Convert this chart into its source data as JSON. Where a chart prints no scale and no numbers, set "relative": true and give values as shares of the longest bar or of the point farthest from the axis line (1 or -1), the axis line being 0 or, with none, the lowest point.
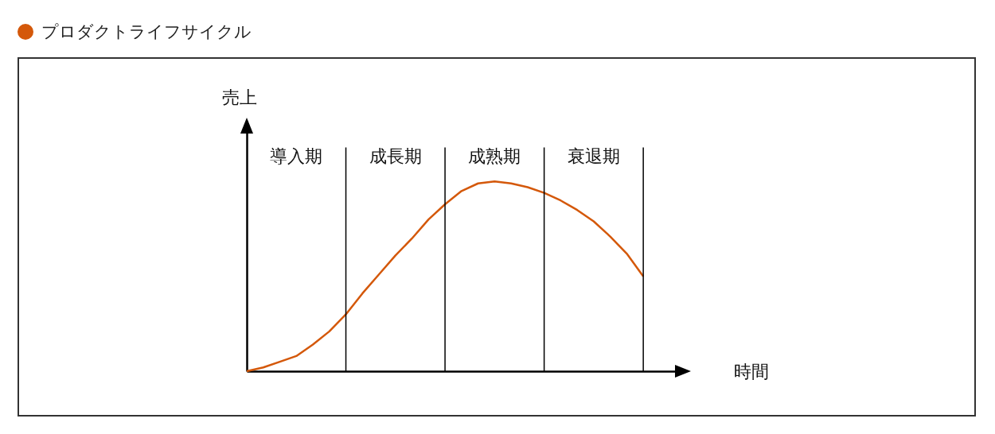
{
  "chart_data": {
    "type": "line",
    "title": "プロダクトライフサイクル",
    "xlabel": "時間",
    "ylabel": "売上",
    "relative": true,
    "grid": "x",
    "line_style": "solid",
    "categories": [
      null,
      null,
      null,
      null,
      null,
      null,
      null,
      null,
      null,
      null,
      null,
      null,
      null,
      null,
      null,
      null,
      null,
      null,
      null,
      null,
      null,
      null,
      null,
      null,
      null
    ],
    "series": [
      {
        "color": "#d4580a",
        "values": [
          0,
          0.02,
          0.05,
          0.08,
          0.14,
          0.21,
          0.3,
          0.41,
          0.51,
          0.61,
          0.7,
          0.8,
          0.88,
          0.95,
          0.99,
          1,
          0.99,
          0.97,
          0.94,
          0.9,
          0.85,
          0.79,
          0.71,
          0.62,
          0.5
        ]
      }
    ],
    "annotations": [
      "導入期",
      "成長期",
      "成熟期",
      "衰退期"
    ]
  }
}
